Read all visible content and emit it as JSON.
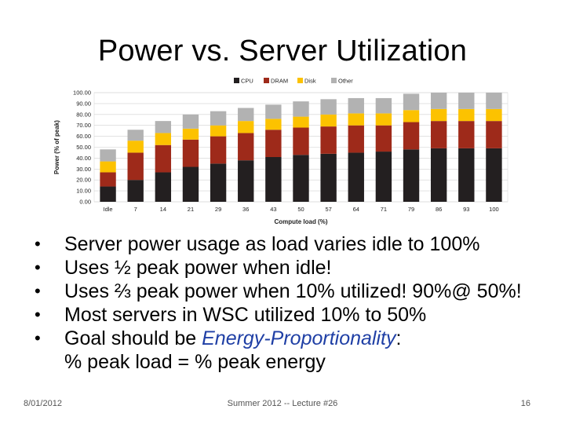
{
  "slide": {
    "title": "Power vs. Server Utilization",
    "bullets": [
      {
        "text": "Server power usage as load varies idle to 100%"
      },
      {
        "text": "Uses ½ peak power when idle!"
      },
      {
        "text": "Uses ⅔ peak power when 10% utilized! 90%@ 50%!"
      },
      {
        "text": "Most servers in WSC utilized 10% to 50%"
      },
      {
        "text_before": "Goal should be ",
        "emph": "Energy-Proportionality",
        "text_after": ":",
        "sub": "% peak load = % peak energy"
      }
    ],
    "footer": {
      "date": "8/01/2012",
      "center": "Summer 2012 -- Lecture #26",
      "page": "16"
    }
  },
  "chart_data": {
    "type": "bar",
    "stacked": true,
    "xlabel": "Compute load (%)",
    "ylabel": "Power (% of peak)",
    "ylim": [
      0,
      100
    ],
    "yticks": [
      "0.00",
      "10.00",
      "20.00",
      "30.00",
      "40.00",
      "50.00",
      "60.00",
      "70.00",
      "80.00",
      "90.00",
      "100.00"
    ],
    "grid": true,
    "legend_position": "top",
    "categories": [
      "Idle",
      "7",
      "14",
      "21",
      "29",
      "36",
      "43",
      "50",
      "57",
      "64",
      "71",
      "79",
      "86",
      "93",
      "100"
    ],
    "series": [
      {
        "name": "CPU",
        "color": "#231f20",
        "values": [
          14,
          20,
          27,
          32,
          35,
          38,
          41,
          43,
          44,
          45,
          46,
          48,
          49,
          49,
          49
        ]
      },
      {
        "name": "DRAM",
        "color": "#9e2a1a",
        "values": [
          13,
          25,
          25,
          25,
          25,
          25,
          25,
          25,
          25,
          25,
          24,
          25,
          25,
          25,
          25
        ]
      },
      {
        "name": "Disk",
        "color": "#fcc200",
        "values": [
          10,
          11,
          11,
          10,
          10,
          11,
          10,
          10,
          11,
          11,
          11,
          11,
          11,
          11,
          11
        ]
      },
      {
        "name": "Other",
        "color": "#b2b2b2",
        "values": [
          11,
          10,
          11,
          13,
          13,
          12,
          13,
          14,
          14,
          14,
          14,
          15,
          15,
          15,
          15
        ]
      }
    ]
  }
}
